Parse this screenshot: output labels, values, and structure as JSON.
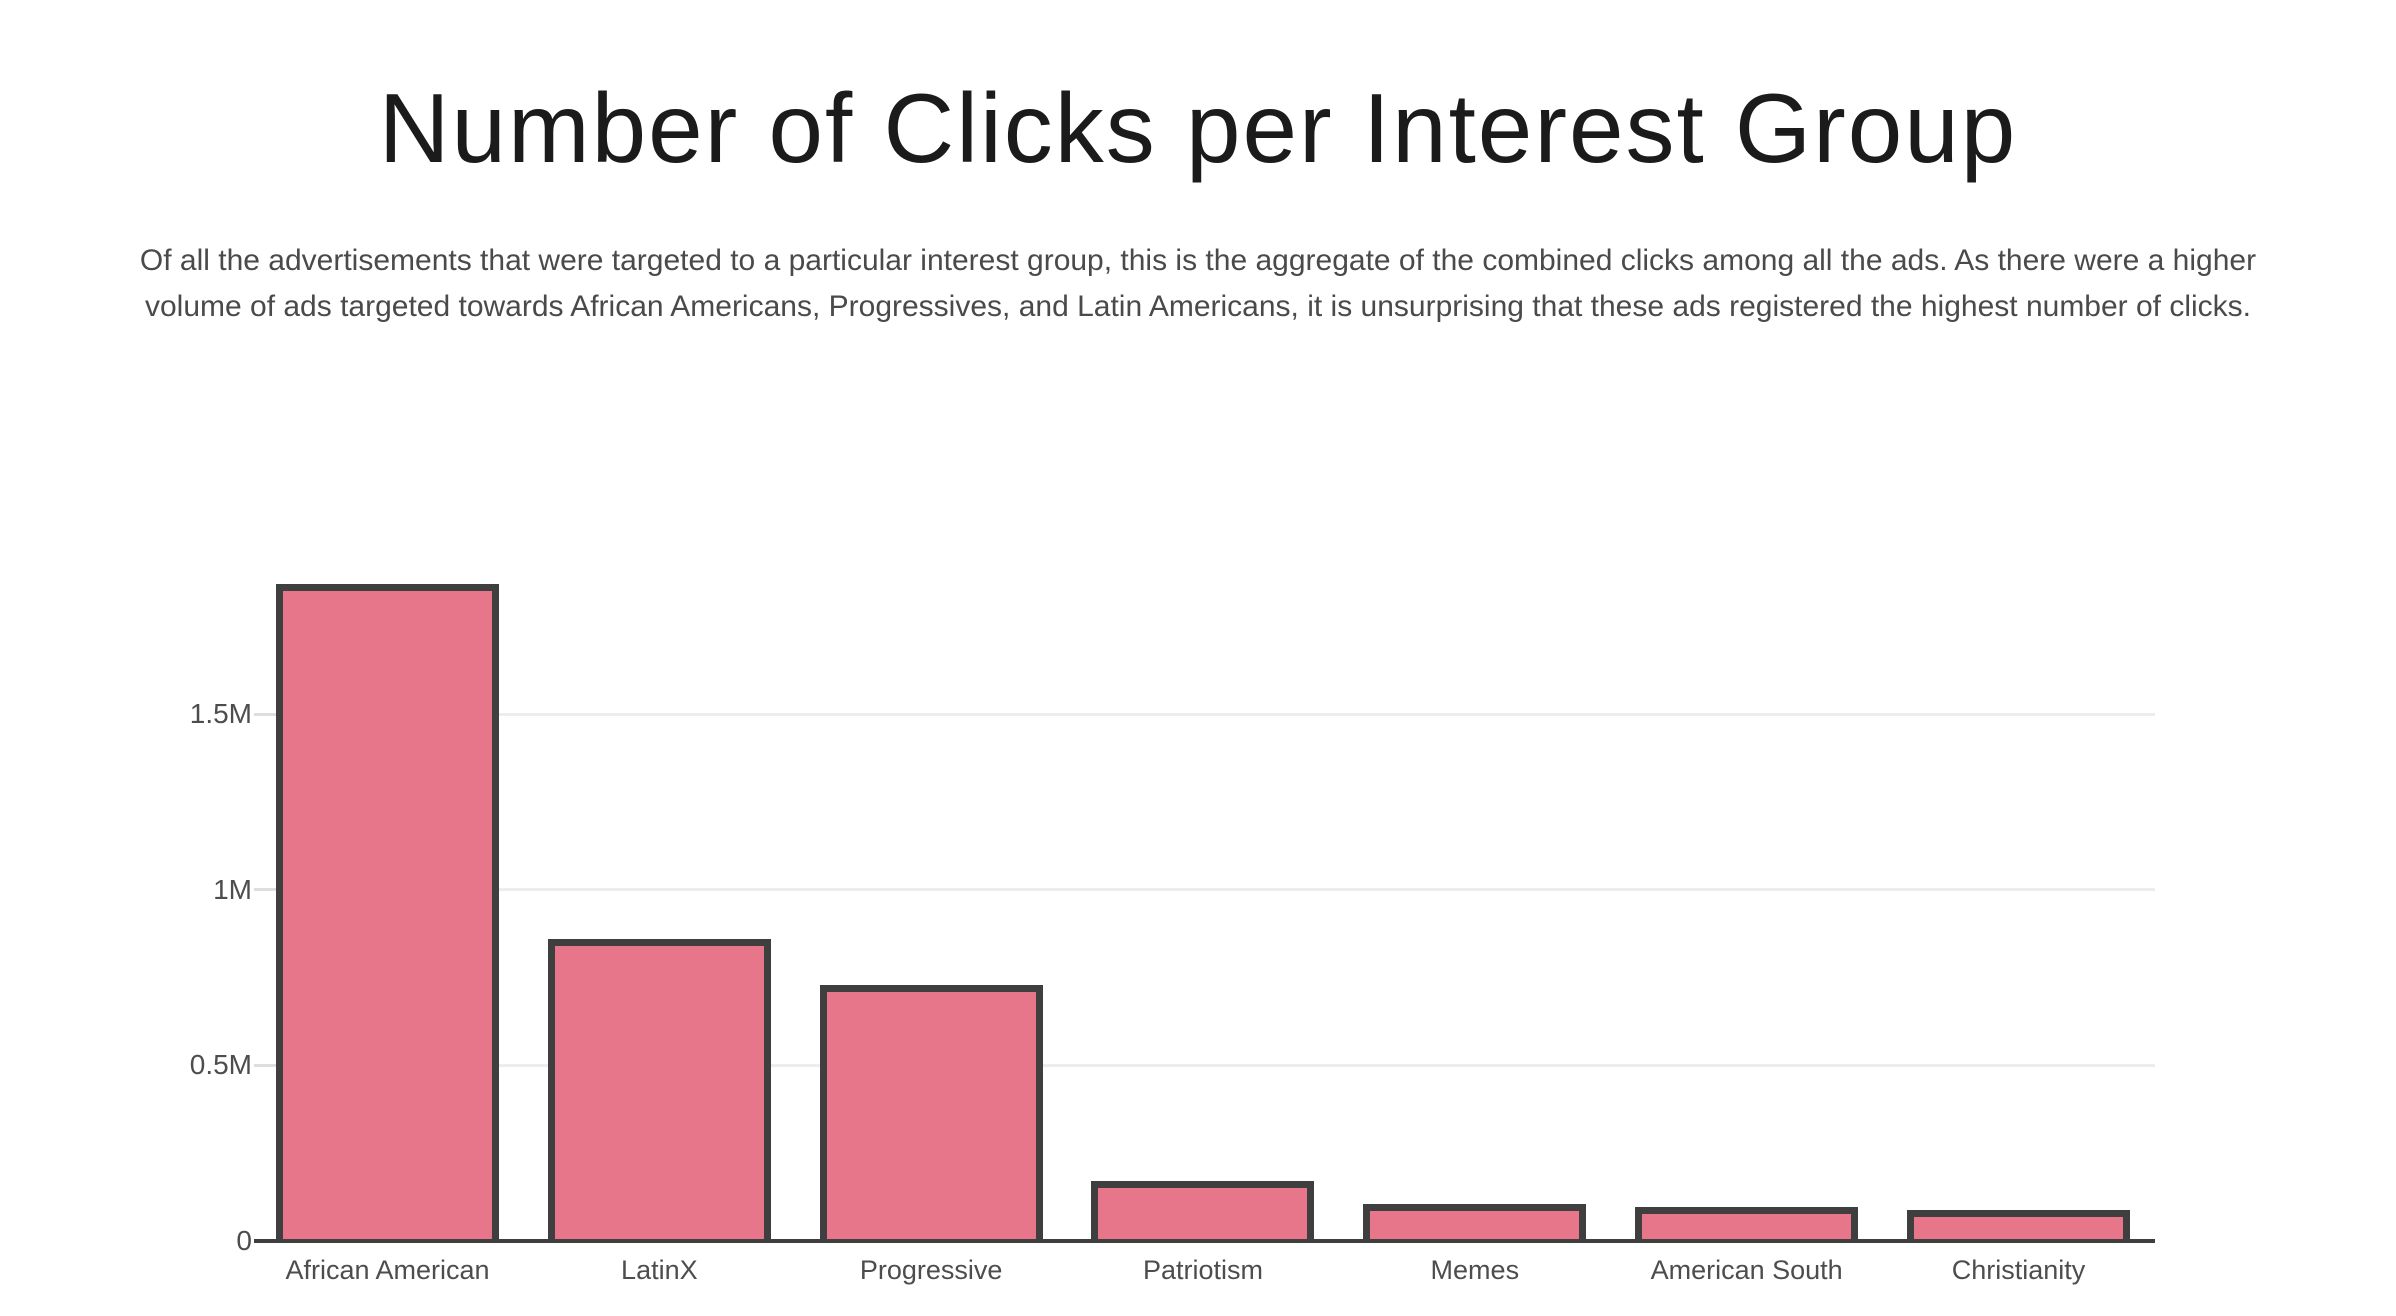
{
  "title": "Number of Clicks per Interest Group",
  "subtitle": "Of all the advertisements that were targeted to a particular interest group, this is the aggregate of the combined clicks among all the ads. As there were a higher volume of ads targeted towards African Americans, Progressives, and Latin Americans, it is unsurprising that these ads registered the highest number of clicks.",
  "chart_data": {
    "type": "bar",
    "title": "Number of Clicks per Interest Group",
    "categories": [
      "African American",
      "LatinX",
      "Progressive",
      "Patriotism",
      "Memes",
      "American South",
      "Christianity"
    ],
    "values": [
      1870000,
      860000,
      730000,
      170000,
      105000,
      97000,
      88000
    ],
    "xlabel": "",
    "ylabel": "",
    "ylim": [
      0,
      1870000
    ],
    "y_ticks": [
      {
        "value": 0,
        "label": "0"
      },
      {
        "value": 500000,
        "label": "0.5M"
      },
      {
        "value": 1000000,
        "label": "1M"
      },
      {
        "value": 1500000,
        "label": "1.5M"
      }
    ],
    "grid": "horizontal-only",
    "legend": "none",
    "colors": {
      "bar_fill": "#e7768a",
      "bar_border": "#3f3f3f",
      "axis_line": "#3f3f3f",
      "gridline": "#ededed",
      "tick_mark": "#dedede",
      "title_text": "#1b1b1b",
      "subtitle_text": "#4a4a4a",
      "axis_label_text": "#4d4d4d",
      "background": "#ffffff"
    }
  }
}
